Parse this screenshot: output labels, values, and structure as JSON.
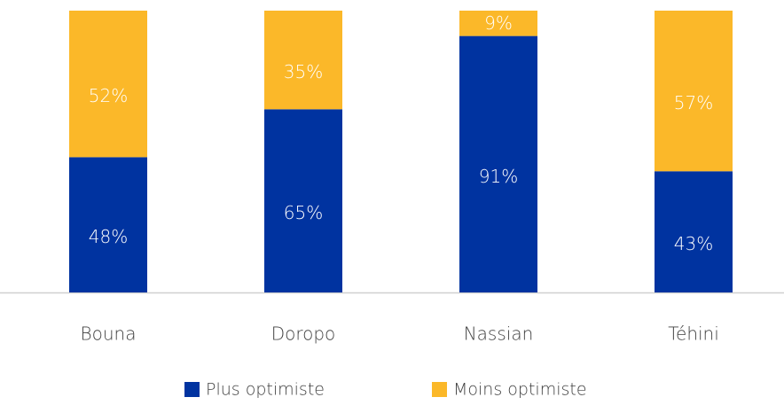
{
  "chart_data": {
    "type": "bar",
    "stacked": true,
    "categories": [
      "Bouna",
      "Doropo",
      "Nassian",
      "Téhini"
    ],
    "series": [
      {
        "name": "Plus optimiste",
        "color": "#0033a0",
        "values": [
          48,
          65,
          91,
          43
        ],
        "value_labels": [
          "48%",
          "65%",
          "91%",
          "43%"
        ]
      },
      {
        "name": "Moins optimiste",
        "color": "#fbb829",
        "values": [
          52,
          35,
          9,
          57
        ],
        "value_labels": [
          "52%",
          "35%",
          "9%",
          "57%"
        ]
      }
    ],
    "ylim": [
      0,
      100
    ],
    "legend": "bottom"
  }
}
